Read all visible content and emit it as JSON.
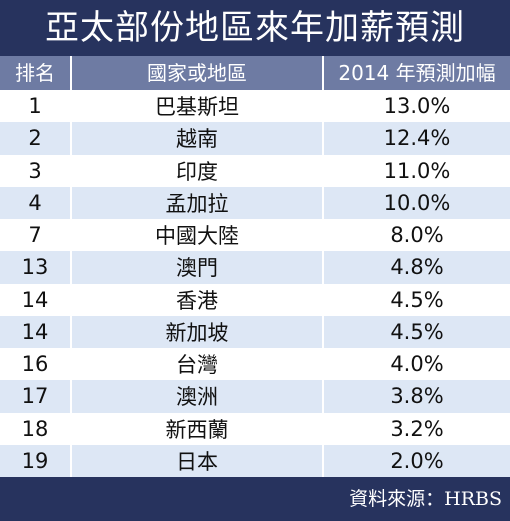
{
  "title": "亞太部份地區來年加薪預測",
  "headers": {
    "rank": "排名",
    "region": "國家或地區",
    "value": "2014 年預測加幅"
  },
  "chart_data": {
    "type": "table",
    "columns": [
      "排名",
      "國家或地區",
      "2014 年預測加幅"
    ],
    "rows": [
      {
        "rank": "1",
        "region": "巴基斯坦",
        "value": "13.0%"
      },
      {
        "rank": "2",
        "region": "越南",
        "value": "12.4%"
      },
      {
        "rank": "3",
        "region": "印度",
        "value": "11.0%"
      },
      {
        "rank": "4",
        "region": "孟加拉",
        "value": "10.0%"
      },
      {
        "rank": "7",
        "region": "中國大陸",
        "value": "8.0%"
      },
      {
        "rank": "13",
        "region": "澳門",
        "value": "4.8%"
      },
      {
        "rank": "14",
        "region": "香港",
        "value": "4.5%"
      },
      {
        "rank": "14",
        "region": "新加坡",
        "value": "4.5%"
      },
      {
        "rank": "16",
        "region": "台灣",
        "value": "4.0%"
      },
      {
        "rank": "17",
        "region": "澳洲",
        "value": "3.8%"
      },
      {
        "rank": "18",
        "region": "新西蘭",
        "value": "3.2%"
      },
      {
        "rank": "19",
        "region": "日本",
        "value": "2.0%"
      }
    ]
  },
  "source": "資料來源：HRBS",
  "colors": {
    "title_bg": "#27335e",
    "header_bg": "#6e7ba3",
    "row_alt": "#dde7f5"
  }
}
